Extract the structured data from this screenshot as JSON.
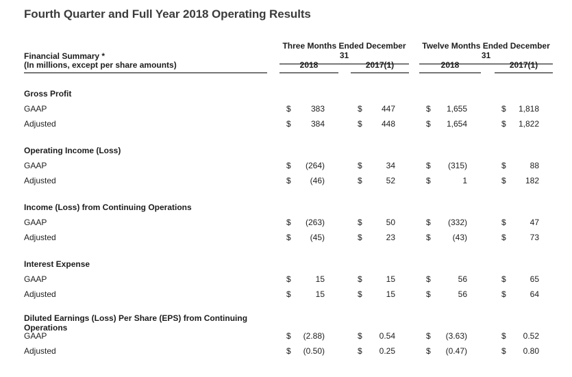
{
  "page": {
    "title": "Fourth Quarter and Full Year 2018 Operating Results"
  },
  "table": {
    "left_header": {
      "line1": "Financial Summary *",
      "line2": "(In millions, except per share amounts)"
    },
    "column_groups": [
      {
        "label": "Three Months Ended December 31",
        "columns": [
          "2018",
          "2017(1)"
        ]
      },
      {
        "label": "Twelve Months Ended December 31",
        "columns": [
          "2018",
          "2017(1)"
        ]
      }
    ],
    "currency_symbol": "$",
    "sections": [
      {
        "header": "Gross Profit",
        "rows": [
          {
            "label": "GAAP",
            "values": [
              "383",
              "447",
              "1,655",
              "1,818"
            ]
          },
          {
            "label": "Adjusted",
            "values": [
              "384",
              "448",
              "1,654",
              "1,822"
            ]
          }
        ]
      },
      {
        "header": "Operating Income (Loss)",
        "rows": [
          {
            "label": "GAAP",
            "values": [
              "(264)",
              "34",
              "(315)",
              "88"
            ]
          },
          {
            "label": "Adjusted",
            "values": [
              "(46)",
              "52",
              "1",
              "182"
            ]
          }
        ]
      },
      {
        "header": "Income (Loss) from Continuing Operations",
        "rows": [
          {
            "label": "GAAP",
            "values": [
              "(263)",
              "50",
              "(332)",
              "47"
            ]
          },
          {
            "label": "Adjusted",
            "values": [
              "(45)",
              "23",
              "(43)",
              "73"
            ]
          }
        ]
      },
      {
        "header": "Interest Expense",
        "rows": [
          {
            "label": "GAAP",
            "values": [
              "15",
              "15",
              "56",
              "65"
            ]
          },
          {
            "label": "Adjusted",
            "values": [
              "15",
              "15",
              "56",
              "64"
            ]
          }
        ]
      },
      {
        "header": "Diluted Earnings (Loss) Per Share (EPS) from Continuing Operations",
        "rows": [
          {
            "label": "GAAP",
            "values": [
              "(2.88)",
              "0.54",
              "(3.63)",
              "0.52"
            ]
          },
          {
            "label": "Adjusted",
            "values": [
              "(0.50)",
              "0.25",
              "(0.47)",
              "0.80"
            ]
          }
        ]
      }
    ]
  },
  "colors": {
    "title": "#3b3b3b",
    "text": "#1c1c1c",
    "rule": "#000000"
  }
}
